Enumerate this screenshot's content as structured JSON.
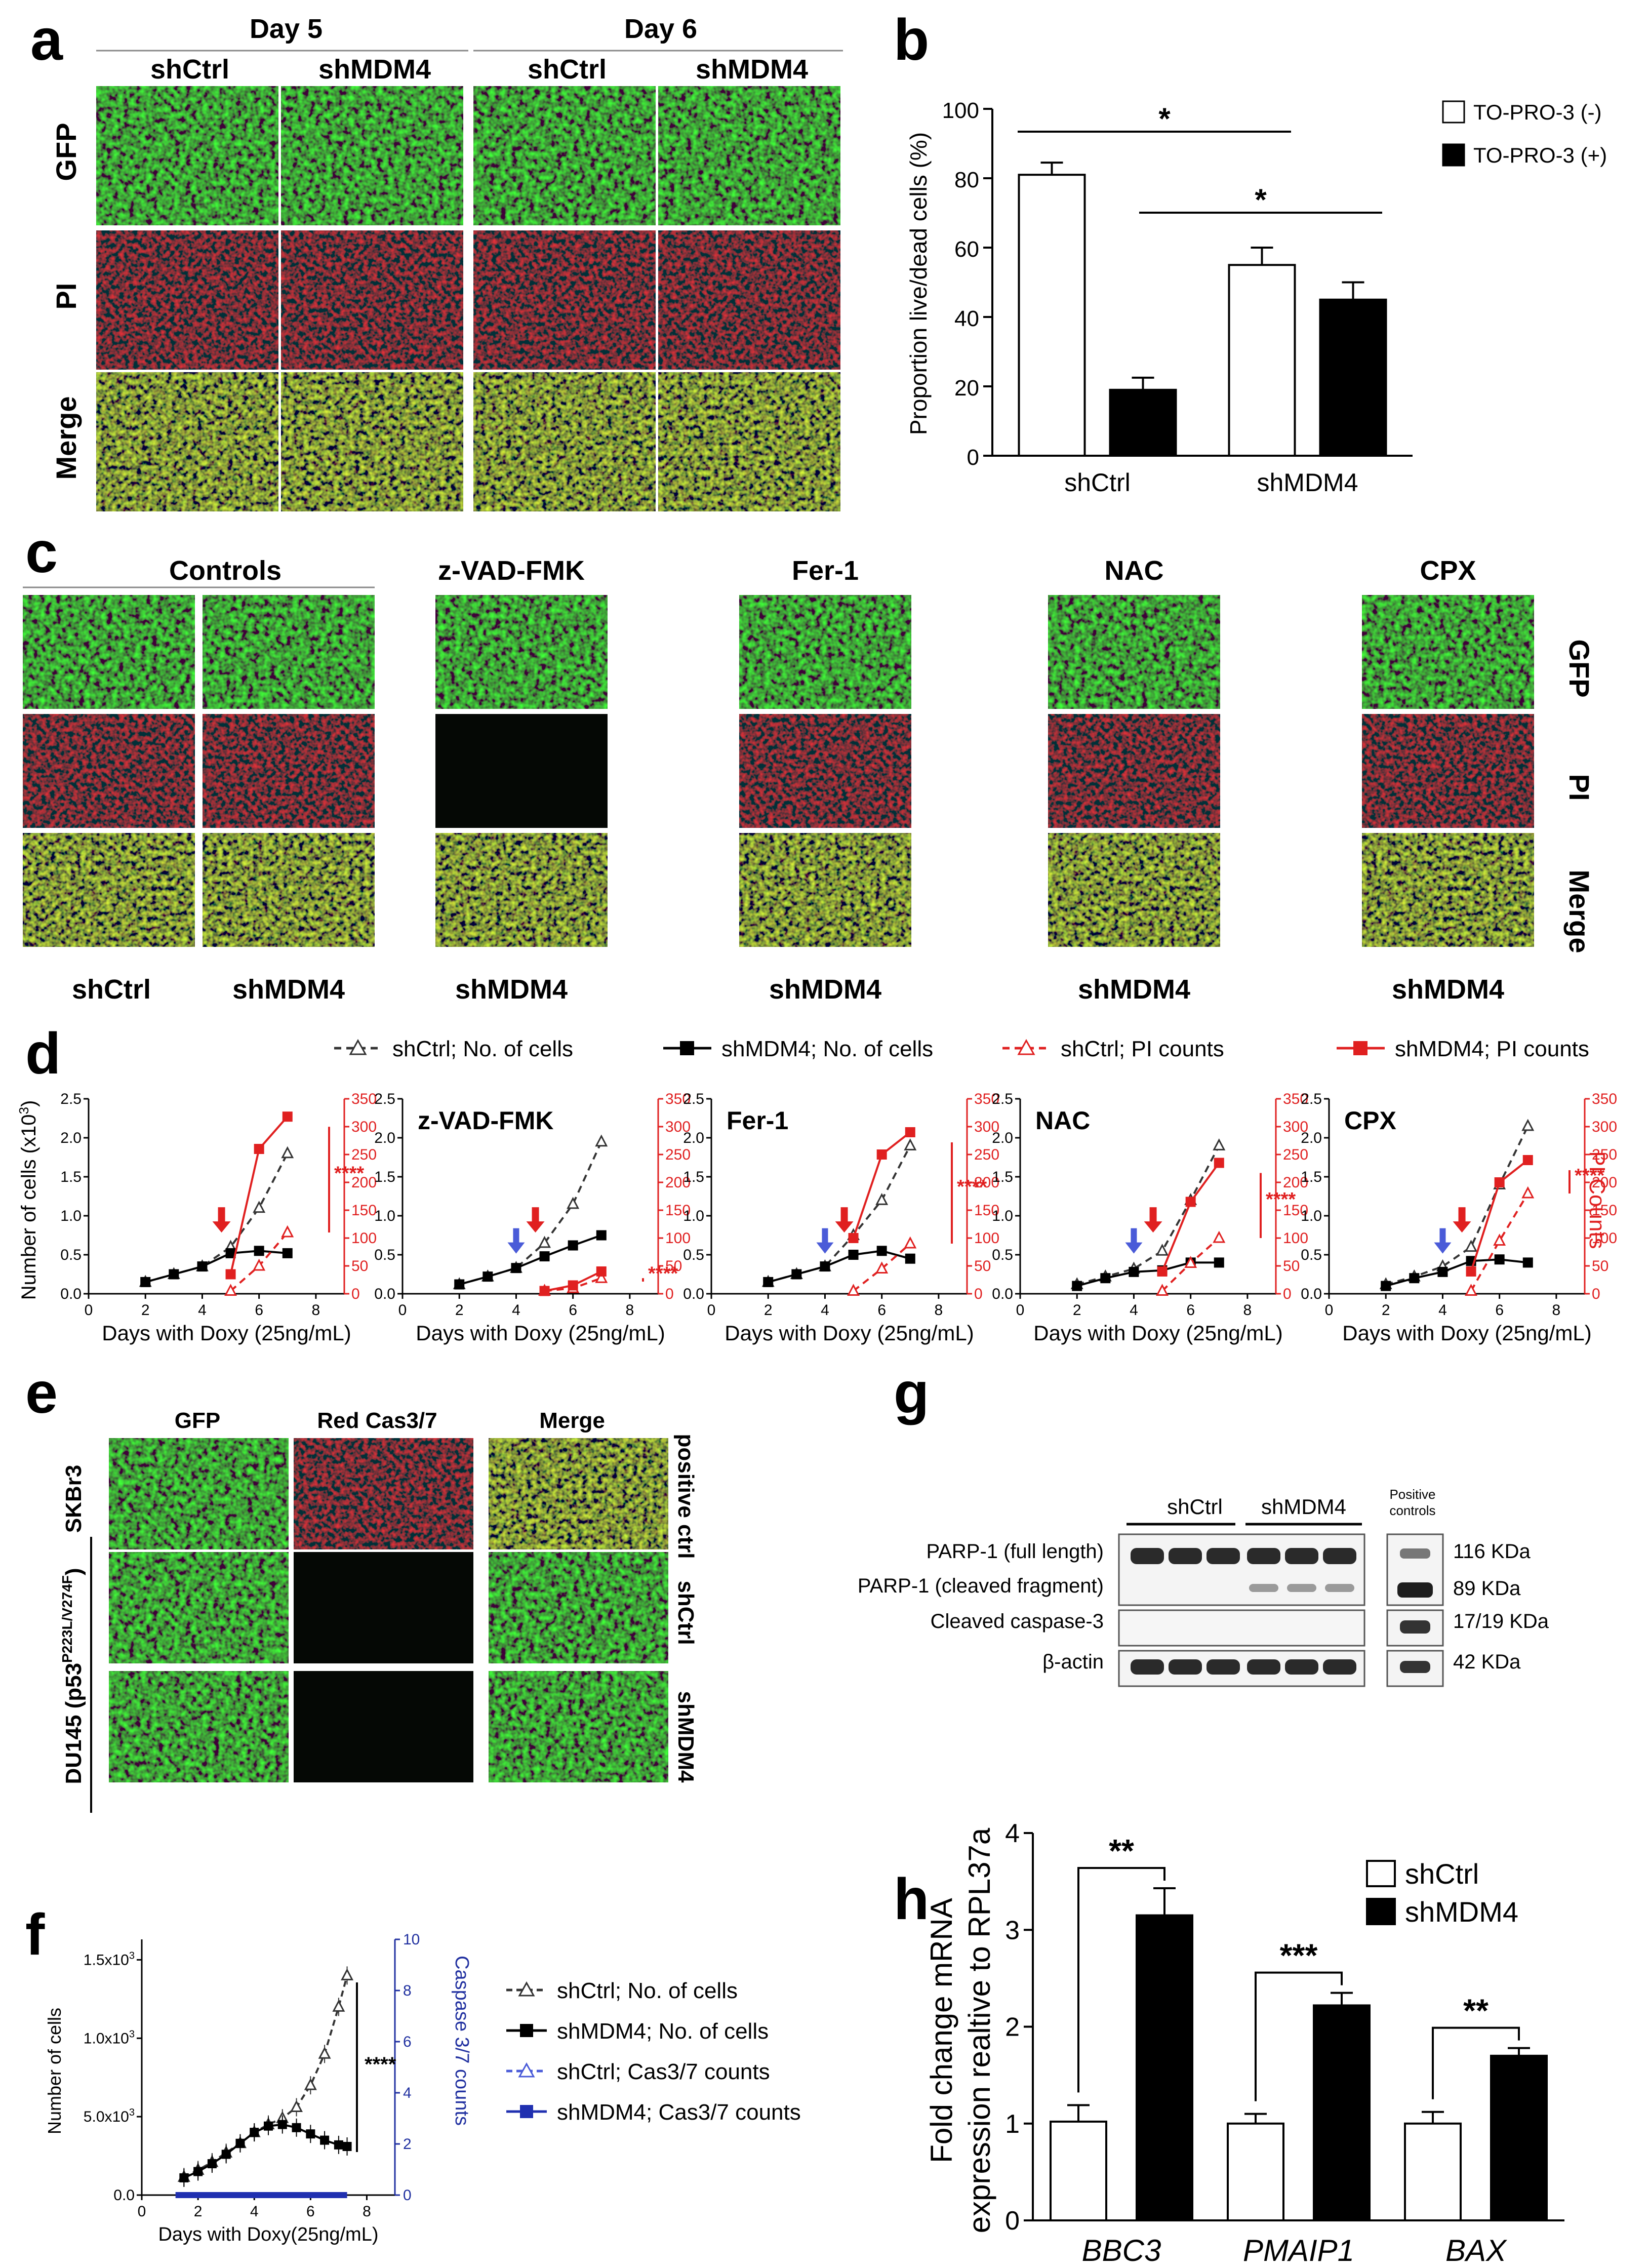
{
  "panel_labels": {
    "a": "a",
    "b": "b",
    "c": "c",
    "d": "d",
    "e": "e",
    "f": "f",
    "g": "g",
    "h": "h"
  },
  "panel_a": {
    "day_headers": [
      "Day 5",
      "Day 6"
    ],
    "column_headers": [
      "shCtrl",
      "shMDM4",
      "shCtrl",
      "shMDM4"
    ],
    "row_labels": [
      "GFP",
      "PI",
      "Merge"
    ]
  },
  "panel_c": {
    "group_headers": [
      "Controls",
      "z-VAD-FMK",
      "Fer-1",
      "NAC",
      "CPX"
    ],
    "row_labels": [
      "GFP",
      "PI",
      "Merge"
    ],
    "bottom_labels": [
      "shCtrl",
      "shMDM4",
      "shMDM4",
      "shMDM4",
      "shMDM4",
      "shMDM4"
    ]
  },
  "panel_e": {
    "column_headers": [
      "GFP",
      "Red Cas3/7",
      "Merge"
    ],
    "left_labels": [
      "SKBr3",
      "DU145 (p53",
      "P223L/V274F",
      ")"
    ],
    "right_labels": [
      "positive ctrl",
      "shCtrl",
      "shMDM4"
    ]
  },
  "panel_g": {
    "group_labels": [
      "shCtrl",
      "shMDM4",
      "Positive",
      "controls"
    ],
    "row_labels": [
      "PARP-1 (full length)",
      "PARP-1 (cleaved fragment)",
      "Cleaved caspase-3",
      "β-actin"
    ],
    "kda_labels": [
      "116 KDa",
      "89 KDa",
      "17/19 KDa",
      "42 KDa"
    ]
  },
  "chart_data": [
    {
      "id": "b",
      "type": "bar",
      "categories": [
        "shCtrl",
        "shMDM4"
      ],
      "series": [
        {
          "name": "TO-PRO-3 (-)",
          "values": [
            81,
            55
          ],
          "errors": [
            3.5,
            5
          ],
          "fill": "white"
        },
        {
          "name": "TO-PRO-3 (+)",
          "values": [
            19,
            45
          ],
          "errors": [
            3.5,
            5
          ],
          "fill": "black"
        }
      ],
      "ylabel": "Proportion live/dead cells (%)",
      "ylim": [
        0,
        100
      ],
      "yticks": [
        "0",
        "20",
        "40",
        "60",
        "80",
        "100"
      ],
      "significance": [
        "*",
        "*"
      ],
      "legend": "top-right"
    },
    {
      "id": "d",
      "type": "line",
      "legend_entries": [
        "shCtrl; No. of cells",
        "shMDM4; No. of cells",
        "shCtrl; PI counts",
        "shMDM4; PI counts"
      ],
      "ylabel_left": "Number of cells (x10",
      "ylabel_left_sup": "3",
      "ylabel_left_end": ")",
      "ylabel_right": "PI Counts",
      "xlabel": "Days with Doxy (25ng/mL)",
      "xticks": [
        "0",
        "2",
        "4",
        "6",
        "8"
      ],
      "yticks_left": [
        "0.0",
        "0.5",
        "1.0",
        "1.5",
        "2.0",
        "2.5"
      ],
      "yticks_right": [
        "0",
        "50",
        "100",
        "150",
        "200",
        "250",
        "300",
        "350"
      ],
      "ylim_left": [
        0,
        2.5
      ],
      "ylim_right": [
        0,
        350
      ],
      "xlim": [
        0,
        9
      ],
      "significance": "****",
      "subplots": [
        {
          "title": "",
          "shCtrl_cells": [
            [
              2,
              0.15
            ],
            [
              3,
              0.25
            ],
            [
              4,
              0.35
            ],
            [
              5,
              0.6
            ],
            [
              6,
              1.1
            ],
            [
              7,
              1.8
            ]
          ],
          "shMDM4_cells": [
            [
              2,
              0.15
            ],
            [
              3,
              0.25
            ],
            [
              4,
              0.35
            ],
            [
              5,
              0.52
            ],
            [
              6,
              0.55
            ],
            [
              7,
              0.52
            ]
          ],
          "shCtrl_pi": [
            [
              5,
              5
            ],
            [
              6,
              50
            ],
            [
              7,
              110
            ]
          ],
          "shMDM4_pi": [
            [
              5,
              35
            ],
            [
              6,
              260
            ],
            [
              7,
              318
            ]
          ],
          "red_arrow_day": 5,
          "blue_arrow_day": null
        },
        {
          "title": "z-VAD-FMK",
          "shCtrl_cells": [
            [
              2,
              0.12
            ],
            [
              3,
              0.22
            ],
            [
              4,
              0.33
            ],
            [
              5,
              0.65
            ],
            [
              6,
              1.15
            ],
            [
              7,
              1.95
            ]
          ],
          "shMDM4_cells": [
            [
              2,
              0.12
            ],
            [
              3,
              0.22
            ],
            [
              4,
              0.33
            ],
            [
              5,
              0.48
            ],
            [
              6,
              0.62
            ],
            [
              7,
              0.75
            ]
          ],
          "shCtrl_pi": [
            [
              5,
              5
            ],
            [
              6,
              10
            ],
            [
              7,
              28
            ]
          ],
          "shMDM4_pi": [
            [
              5,
              5
            ],
            [
              6,
              15
            ],
            [
              7,
              40
            ]
          ],
          "red_arrow_day": 5,
          "blue_arrow_day": 4
        },
        {
          "title": "Fer-1",
          "shCtrl_cells": [
            [
              2,
              0.15
            ],
            [
              3,
              0.25
            ],
            [
              4,
              0.35
            ],
            [
              5,
              0.75
            ],
            [
              6,
              1.2
            ],
            [
              7,
              1.9
            ]
          ],
          "shMDM4_cells": [
            [
              2,
              0.15
            ],
            [
              3,
              0.25
            ],
            [
              4,
              0.35
            ],
            [
              5,
              0.5
            ],
            [
              6,
              0.55
            ],
            [
              7,
              0.45
            ]
          ],
          "shCtrl_pi": [
            [
              5,
              5
            ],
            [
              6,
              45
            ],
            [
              7,
              90
            ]
          ],
          "shMDM4_pi": [
            [
              5,
              100
            ],
            [
              6,
              250
            ],
            [
              7,
              290
            ]
          ],
          "red_arrow_day": 5,
          "blue_arrow_day": 4
        },
        {
          "title": "NAC",
          "shCtrl_cells": [
            [
              2,
              0.12
            ],
            [
              3,
              0.22
            ],
            [
              4,
              0.32
            ],
            [
              5,
              0.55
            ],
            [
              6,
              1.2
            ],
            [
              7,
              1.9
            ]
          ],
          "shMDM4_cells": [
            [
              2,
              0.1
            ],
            [
              3,
              0.2
            ],
            [
              4,
              0.28
            ],
            [
              5,
              0.3
            ],
            [
              6,
              0.4
            ],
            [
              7,
              0.4
            ]
          ],
          "shCtrl_pi": [
            [
              5,
              5
            ],
            [
              6,
              55
            ],
            [
              7,
              100
            ]
          ],
          "shMDM4_pi": [
            [
              5,
              40
            ],
            [
              6,
              165
            ],
            [
              7,
              235
            ]
          ],
          "red_arrow_day": 5,
          "blue_arrow_day": 4
        },
        {
          "title": "CPX",
          "shCtrl_cells": [
            [
              2,
              0.12
            ],
            [
              3,
              0.22
            ],
            [
              4,
              0.35
            ],
            [
              5,
              0.6
            ],
            [
              6,
              1.4
            ],
            [
              7,
              2.15
            ]
          ],
          "shMDM4_cells": [
            [
              2,
              0.1
            ],
            [
              3,
              0.2
            ],
            [
              4,
              0.28
            ],
            [
              5,
              0.42
            ],
            [
              6,
              0.44
            ],
            [
              7,
              0.4
            ]
          ],
          "shCtrl_pi": [
            [
              5,
              5
            ],
            [
              6,
              95
            ],
            [
              7,
              180
            ]
          ],
          "shMDM4_pi": [
            [
              5,
              40
            ],
            [
              6,
              200
            ],
            [
              7,
              240
            ]
          ],
          "red_arrow_day": 5,
          "blue_arrow_day": 4
        }
      ]
    },
    {
      "id": "f",
      "type": "line",
      "legend_entries": [
        "shCtrl; No. of cells",
        "shMDM4; No. of cells",
        "shCtrl; Cas3/7 counts",
        "shMDM4; Cas3/7 counts"
      ],
      "ylabel_left": "Number of cells",
      "ylabel_right": "Caspase 3/7 counts",
      "xlabel": "Days with Doxy(25ng/mL)",
      "xticks": [
        "0",
        "2",
        "4",
        "6",
        "8"
      ],
      "yticks_left_main": [
        "0.0",
        "5.0x10",
        "1.0x10",
        "1.5x10"
      ],
      "yticks_left_sup": "3",
      "yticks_right": [
        "0",
        "2",
        "4",
        "6",
        "8",
        "10"
      ],
      "ylim_left": [
        0,
        1500
      ],
      "ylim_right": [
        0,
        10
      ],
      "xlim": [
        0,
        9
      ],
      "significance": "****",
      "shCtrl_cells": [
        [
          1.5,
          115
        ],
        [
          2,
          160
        ],
        [
          2.5,
          210
        ],
        [
          3,
          270
        ],
        [
          3.5,
          330
        ],
        [
          4,
          400
        ],
        [
          4.5,
          450
        ],
        [
          5,
          490
        ],
        [
          5.5,
          560
        ],
        [
          6,
          700
        ],
        [
          6.5,
          900
        ],
        [
          7,
          1200
        ],
        [
          7.3,
          1400
        ]
      ],
      "shMDM4_cells": [
        [
          1.5,
          110
        ],
        [
          2,
          150
        ],
        [
          2.5,
          200
        ],
        [
          3,
          260
        ],
        [
          3.5,
          330
        ],
        [
          4,
          400
        ],
        [
          4.5,
          440
        ],
        [
          5,
          450
        ],
        [
          5.5,
          430
        ],
        [
          6,
          390
        ],
        [
          6.5,
          350
        ],
        [
          7,
          320
        ],
        [
          7.3,
          310
        ]
      ],
      "cas37_range": [
        1.2,
        7.3
      ]
    },
    {
      "id": "h",
      "type": "bar",
      "categories": [
        "BBC3",
        "PMAIP1",
        "BAX"
      ],
      "series": [
        {
          "name": "shCtrl",
          "values": [
            1.02,
            1.0,
            1.0
          ],
          "errors": [
            0.17,
            0.1,
            0.12
          ],
          "fill": "white"
        },
        {
          "name": "shMDM4",
          "values": [
            3.15,
            2.22,
            1.7
          ],
          "errors": [
            0.28,
            0.13,
            0.08
          ],
          "fill": "black"
        }
      ],
      "ylabel": "Fold change mRNA",
      "ylabel2": "expression realtive to RPL37a",
      "ylim": [
        0,
        4
      ],
      "yticks": [
        "0",
        "1",
        "2",
        "3",
        "4"
      ],
      "significance": [
        "**",
        "***",
        "**"
      ],
      "legend": "top-right"
    }
  ]
}
